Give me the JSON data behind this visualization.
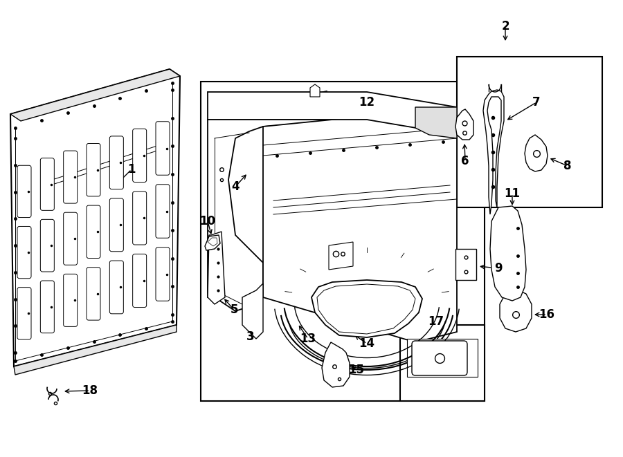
{
  "bg_color": "#ffffff",
  "line_color": "#000000",
  "fig_width": 9.0,
  "fig_height": 6.61,
  "dpi": 100,
  "label_fontsize": 12
}
